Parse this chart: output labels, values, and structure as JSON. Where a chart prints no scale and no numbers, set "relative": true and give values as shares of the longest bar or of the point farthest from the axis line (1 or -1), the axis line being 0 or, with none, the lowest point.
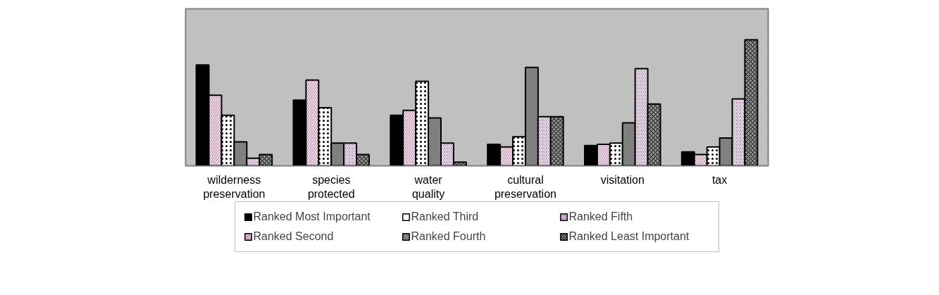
{
  "chart_data": {
    "type": "bar",
    "relative": true,
    "grid": false,
    "legend": "bottom",
    "categories": [
      "wilderness preservation",
      "species protected",
      "water quality",
      "cultural preservation",
      "visitation",
      "tax"
    ],
    "series": [
      {
        "name": "Ranked Most Important",
        "color": "#000000",
        "values": [
          0.8,
          0.52,
          0.4,
          0.17,
          0.16,
          0.11
        ]
      },
      {
        "name": "Ranked Second",
        "color": "#b0508a",
        "values": [
          0.56,
          0.68,
          0.44,
          0.15,
          0.17,
          0.09
        ]
      },
      {
        "name": "Ranked Third",
        "color": "#ffffff",
        "values": [
          0.4,
          0.46,
          0.67,
          0.23,
          0.18,
          0.15
        ]
      },
      {
        "name": "Ranked Fourth",
        "color": "#808080",
        "values": [
          0.19,
          0.18,
          0.38,
          0.78,
          0.34,
          0.22
        ]
      },
      {
        "name": "Ranked Fifth",
        "color": "#9a5fa0",
        "values": [
          0.06,
          0.18,
          0.18,
          0.39,
          0.77,
          0.53
        ]
      },
      {
        "name": "Ranked Least Important",
        "color": "#8c8c8c",
        "values": [
          0.09,
          0.09,
          0.03,
          0.39,
          0.49,
          1.0
        ]
      }
    ]
  }
}
